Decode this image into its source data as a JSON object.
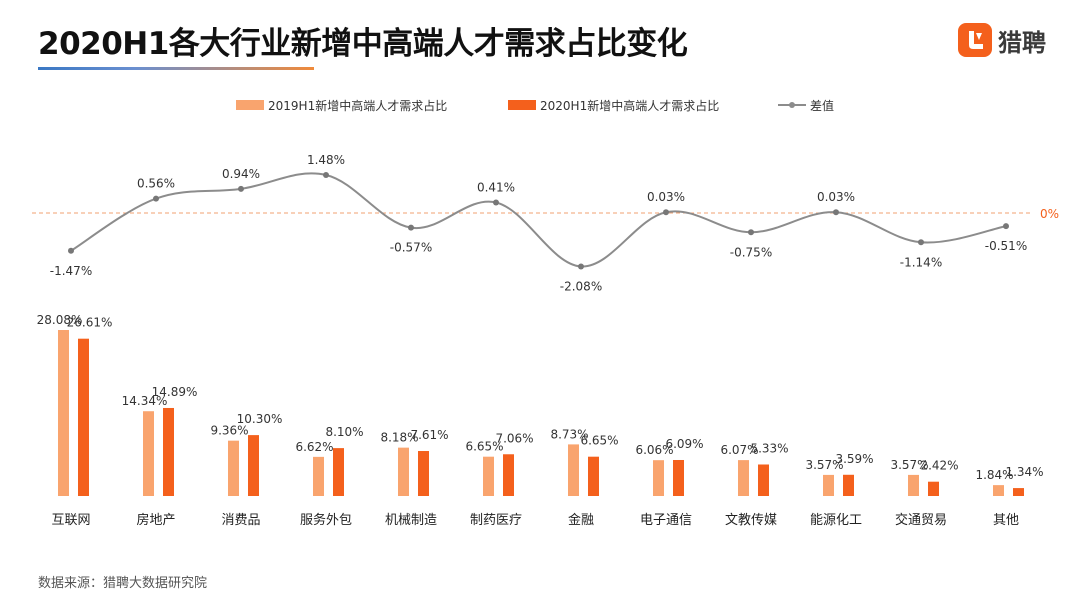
{
  "header": {
    "title": "2020H1各大行业新增中高端人才需求占比变化",
    "logo_text": "猎聘",
    "logo_icon": "liepin-logo-icon"
  },
  "footer": {
    "source": "数据来源：猎聘大数据研究院"
  },
  "colors": {
    "series2019": "#f9a46e",
    "series2020": "#f4601c",
    "line": "#8c8c8c",
    "zero_line": "#f0a070",
    "accent": "#f4601c"
  },
  "chart_data": {
    "type": "bar",
    "categories": [
      "互联网",
      "房地产",
      "消费品",
      "服务外包",
      "机械制造",
      "制药医疗",
      "金融",
      "电子通信",
      "文教传媒",
      "能源化工",
      "交通贸易",
      "其他"
    ],
    "series": [
      {
        "name": "2019H1新增中高端人才需求占比",
        "values": [
          28.08,
          14.34,
          9.36,
          6.62,
          8.18,
          6.65,
          8.73,
          6.06,
          6.07,
          3.57,
          3.57,
          1.84
        ],
        "labels": [
          "28.08%",
          "14.34%",
          "9.36%",
          "6.62%",
          "8.18%",
          "6.65%",
          "8.73%",
          "6.06%",
          "6.07%",
          "3.57%",
          "3.57%",
          "1.84%"
        ]
      },
      {
        "name": "2020H1新增中高端人才需求占比",
        "values": [
          26.61,
          14.89,
          10.3,
          8.1,
          7.61,
          7.06,
          6.65,
          6.09,
          5.33,
          3.59,
          2.42,
          1.34
        ],
        "labels": [
          "26.61%",
          "14.89%",
          "10.30%",
          "8.10%",
          "7.61%",
          "7.06%",
          "6.65%",
          "6.09%",
          "5.33%",
          "3.59%",
          "2.42%",
          "1.34%"
        ]
      },
      {
        "name": "差值",
        "type": "line",
        "values": [
          -1.47,
          0.56,
          0.94,
          1.48,
          -0.57,
          0.41,
          -2.08,
          0.03,
          -0.75,
          0.03,
          -1.14,
          -0.51
        ],
        "labels": [
          "-1.47%",
          "0.56%",
          "0.94%",
          "1.48%",
          "-0.57%",
          "0.41%",
          "-2.08%",
          "0.03%",
          "-0.75%",
          "0.03%",
          "-1.14%",
          "-0.51%"
        ]
      }
    ],
    "zero_label": "0%",
    "legend_position": "top-center",
    "grid": false
  }
}
